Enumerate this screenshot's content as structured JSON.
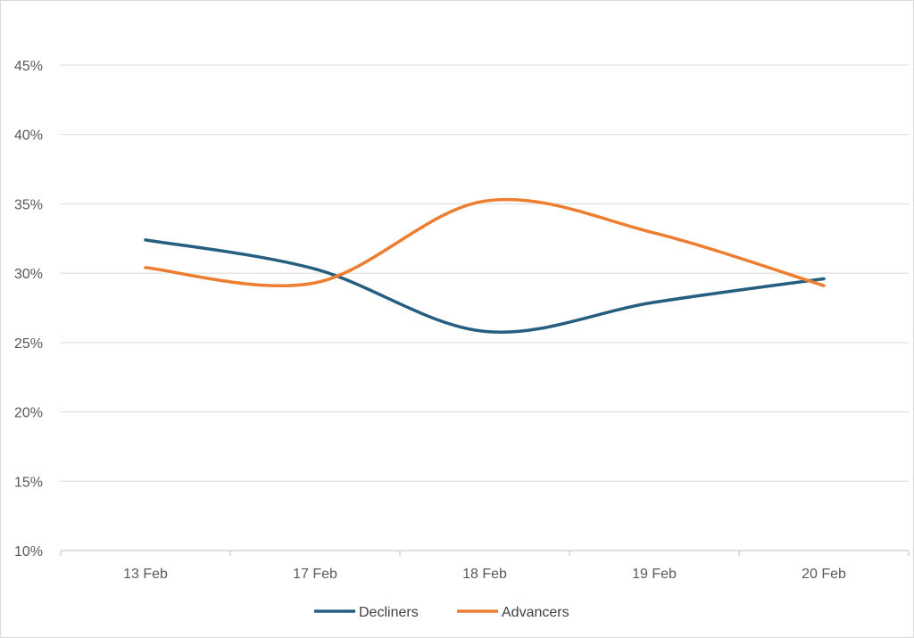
{
  "chart_data": {
    "type": "line",
    "categories": [
      "13 Feb",
      "17 Feb",
      "18 Feb",
      "19 Feb",
      "20 Feb"
    ],
    "ylim": [
      10,
      45
    ],
    "yticks": [
      "10%",
      "15%",
      "20%",
      "25%",
      "30%",
      "35%",
      "40%",
      "45%"
    ],
    "ytick_values": [
      10,
      15,
      20,
      25,
      30,
      35,
      40,
      45
    ],
    "grid": true,
    "legend_position": "bottom",
    "series": [
      {
        "name": "Decliners",
        "values": [
          32.4,
          30.3,
          25.8,
          27.9,
          29.6
        ],
        "color": "#255e7e"
      },
      {
        "name": "Advancers",
        "values": [
          30.4,
          29.3,
          35.2,
          32.9,
          29.1
        ],
        "color": "#ed7d31"
      }
    ]
  }
}
